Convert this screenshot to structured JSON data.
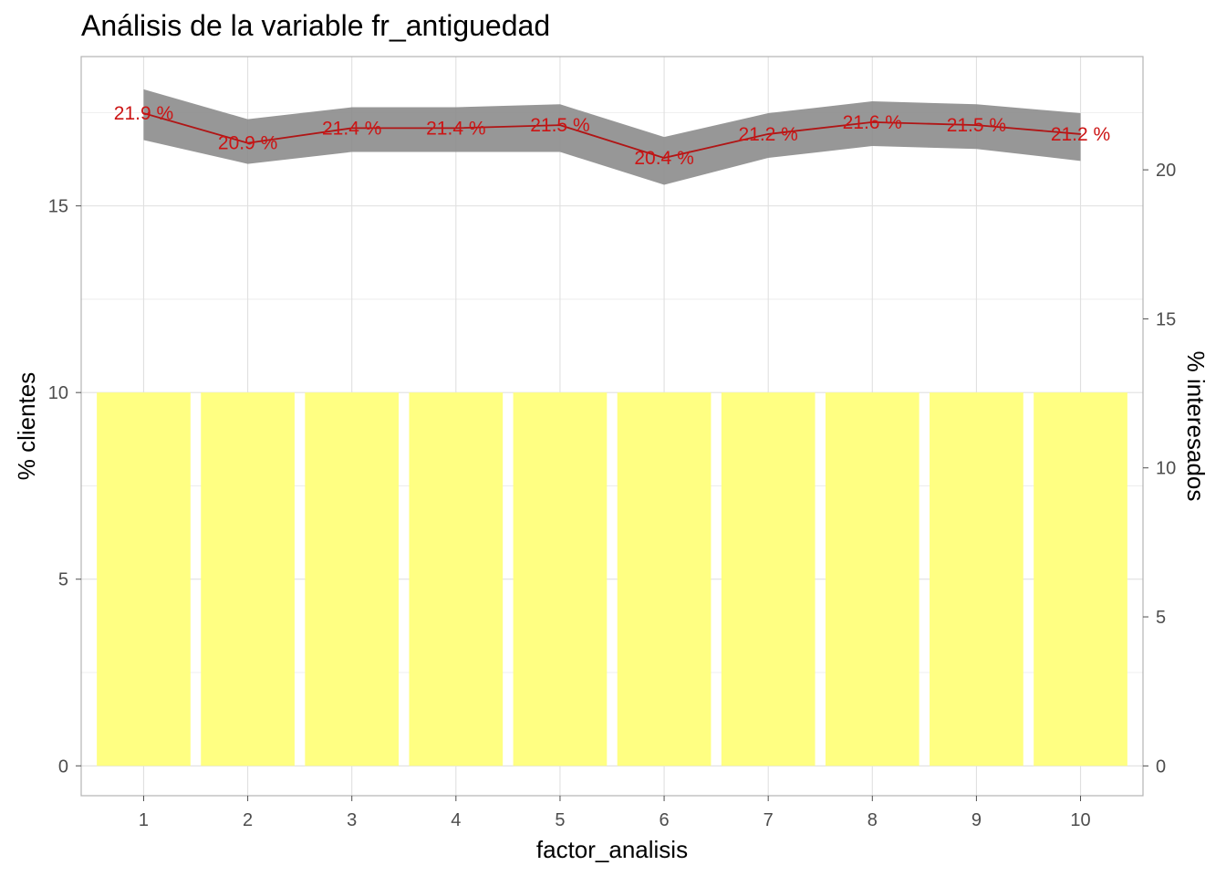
{
  "chart_data": {
    "title": "Análisis de la variable fr_antiguedad",
    "type": "bar+line",
    "xlabel": "factor_analisis",
    "ylabel_left": "% clientes",
    "ylabel_right": "% interesados",
    "categories": [
      "1",
      "2",
      "3",
      "4",
      "5",
      "6",
      "7",
      "8",
      "9",
      "10"
    ],
    "ylim_left": [
      -0.8,
      19.0
    ],
    "ylim_right": [
      -1.0,
      23.8
    ],
    "yticks_left": [
      0,
      5,
      10,
      15
    ],
    "yticks_right": [
      0,
      5,
      10,
      15,
      20
    ],
    "bar_series": {
      "name": "% clientes",
      "values": [
        10,
        10,
        10,
        10,
        10,
        10,
        10,
        10,
        10,
        10
      ],
      "color": "#ffff80"
    },
    "line_series": {
      "name": "% interesados",
      "values": [
        21.9,
        20.9,
        21.4,
        21.4,
        21.5,
        20.4,
        21.2,
        21.6,
        21.5,
        21.2
      ],
      "ribbon_lower": [
        21.0,
        20.2,
        20.6,
        20.6,
        20.6,
        19.5,
        20.4,
        20.8,
        20.7,
        20.3
      ],
      "ribbon_upper": [
        22.7,
        21.7,
        22.1,
        22.1,
        22.2,
        21.1,
        21.9,
        22.3,
        22.2,
        21.9
      ],
      "labels": [
        "21.9 %",
        "20.9 %",
        "21.4 %",
        "21.4 %",
        "21.5 %",
        "20.4 %",
        "21.2 %",
        "21.6 %",
        "21.5 %",
        "21.2 %"
      ],
      "color": "#b01515",
      "ribbon_color": "#8c8c8c"
    },
    "grid": true
  }
}
